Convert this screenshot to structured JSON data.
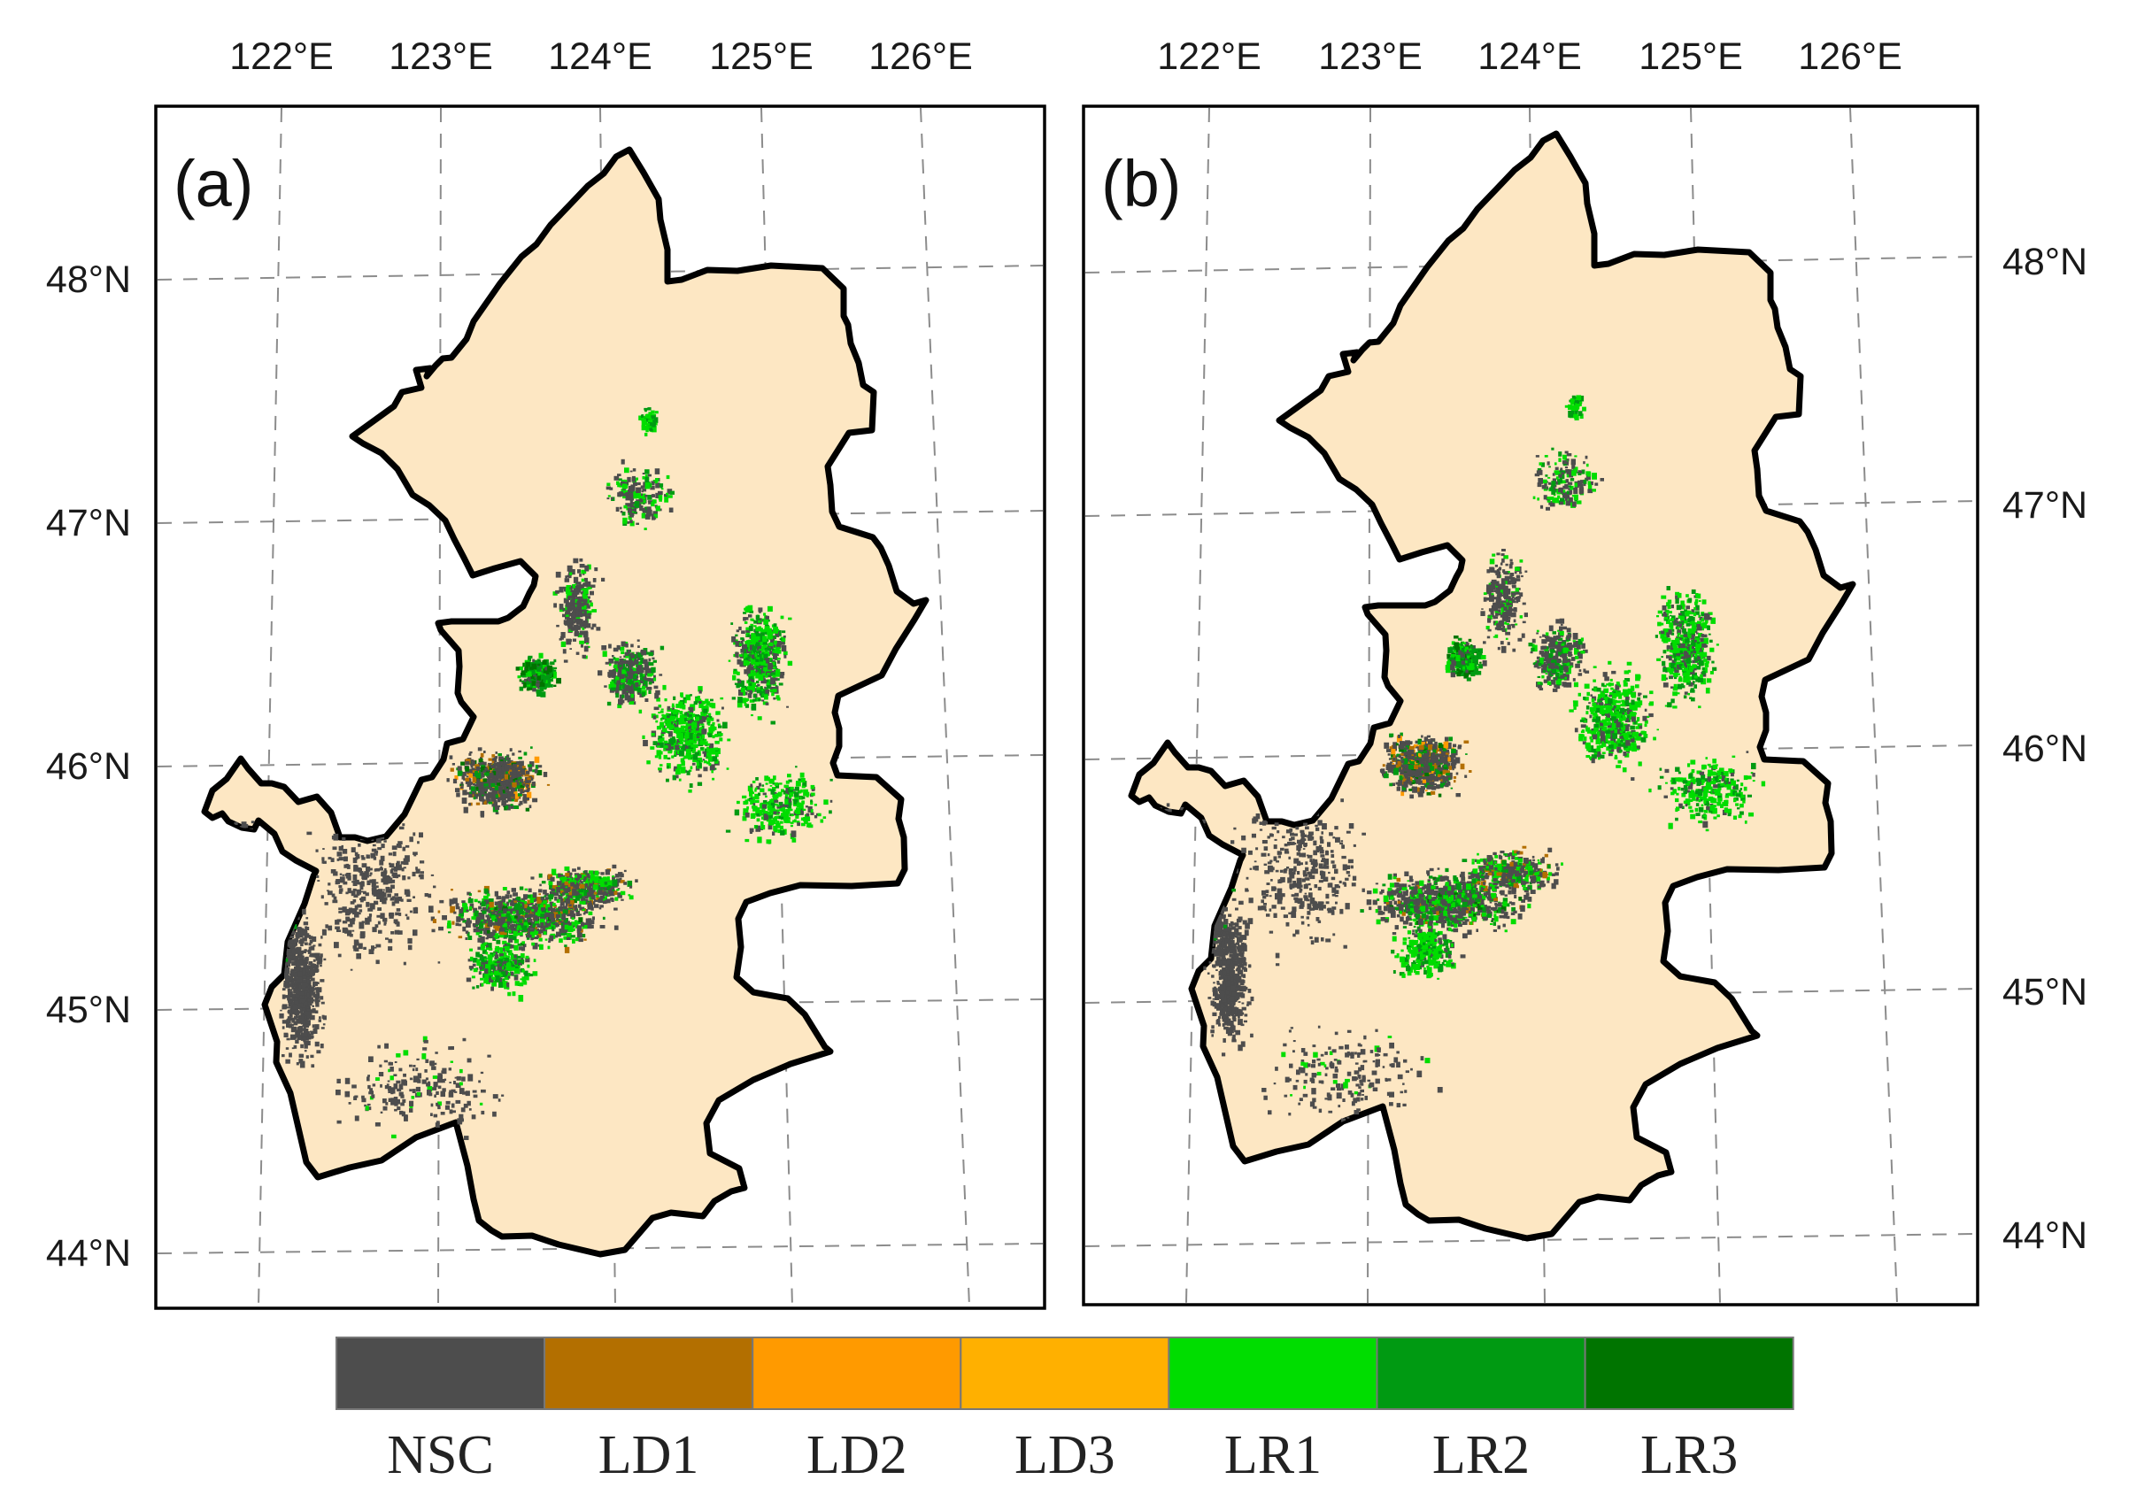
{
  "figure": {
    "panels": [
      {
        "id": "a",
        "label": "(a)",
        "lon_labels": [
          "122°E",
          "123°E",
          "124°E",
          "125°E",
          "126°E"
        ],
        "lat_labels": [
          "48°N",
          "47°N",
          "46°N",
          "45°N",
          "44°N"
        ],
        "lat_label_side": "left"
      },
      {
        "id": "b",
        "label": "(b)",
        "lon_labels": [
          "122°E",
          "123°E",
          "124°E",
          "125°E",
          "126°E"
        ],
        "lat_labels": [
          "48°N",
          "47°N",
          "46°N",
          "45°N",
          "44°N"
        ],
        "lat_label_side": "right"
      }
    ],
    "colors": {
      "background": "#fde7c3",
      "boundary": "#000000",
      "grid": "#8c8c8c"
    }
  },
  "legend": {
    "classes": [
      {
        "code": "NSC",
        "color": "#4d4d4d"
      },
      {
        "code": "LD1",
        "color": "#b36f00"
      },
      {
        "code": "LD2",
        "color": "#ff9a00"
      },
      {
        "code": "LD3",
        "color": "#ffb000"
      },
      {
        "code": "LR1",
        "color": "#00dd00"
      },
      {
        "code": "LR2",
        "color": "#009a12"
      },
      {
        "code": "LR3",
        "color": "#007400"
      }
    ]
  }
}
